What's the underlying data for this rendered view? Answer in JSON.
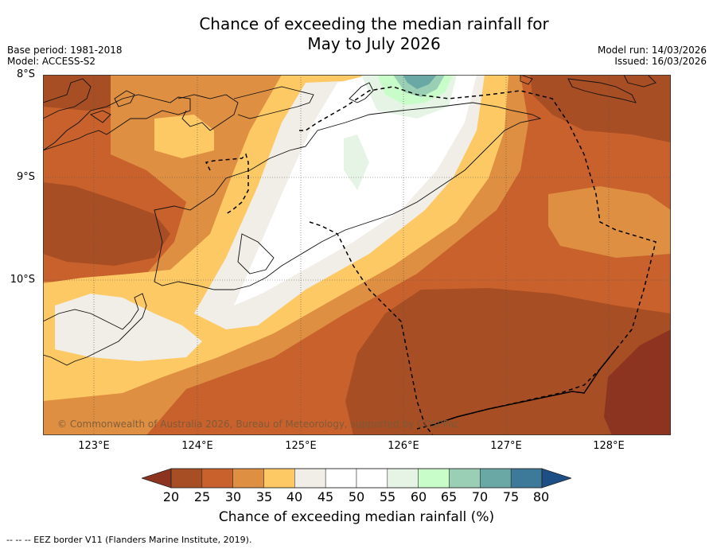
{
  "title": {
    "line1": "Chance of exceeding the median rainfall for",
    "line2": "May to July 2026"
  },
  "meta": {
    "base_period": "Base period: 1981-2018",
    "model": "Model: ACCESS-S2",
    "model_run": "Model run: 14/03/2026",
    "issued": "Issued: 16/03/2026"
  },
  "map": {
    "lat_labels": [
      "8°S",
      "9°S",
      "10°S"
    ],
    "lon_labels": [
      "123°E",
      "124°E",
      "125°E",
      "126°E",
      "127°E",
      "128°E"
    ],
    "copyright": "© Commonwealth of Australia 2026, Bureau of Meteorology, supported by COSPPac"
  },
  "colorbar": {
    "ticks": [
      "20",
      "25",
      "30",
      "35",
      "40",
      "45",
      "50",
      "55",
      "60",
      "65",
      "70",
      "75",
      "80"
    ],
    "colors": [
      "#a84e24",
      "#c8612c",
      "#de8f42",
      "#fdc965",
      "#f1ede7",
      "#ffffff",
      "#ffffff",
      "#e6f4e6",
      "#c8fcc8",
      "#9bcfb5",
      "#69a8a4",
      "#3d7a99"
    ],
    "under_color": "#8c3420",
    "over_color": "#1d4f86",
    "label": "Chance of exceeding median rainfall (%)"
  },
  "footnote": "-- -- -- EEZ border V11 (Flanders Marine Institute, 2019)."
}
